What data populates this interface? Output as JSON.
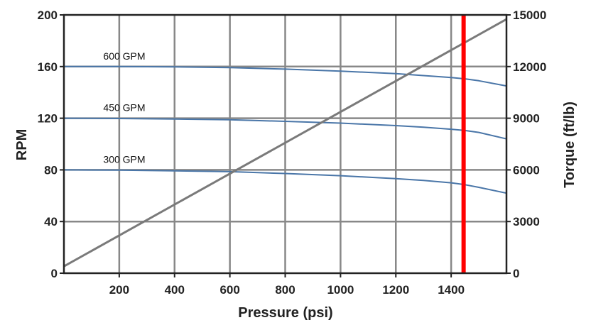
{
  "chart_data": {
    "type": "line",
    "title": "",
    "xlabel": "Pressure (psi)",
    "ylabel": "RPM",
    "y2label": "Torque (ft/lb)",
    "xlim": [
      0,
      1600
    ],
    "ylim": [
      0,
      200
    ],
    "y2lim": [
      0,
      15000
    ],
    "xticks": [
      200,
      400,
      600,
      800,
      1000,
      1200,
      1400
    ],
    "yticks": [
      0,
      40,
      80,
      120,
      160,
      200
    ],
    "y2ticks": [
      0,
      3000,
      6000,
      9000,
      12000,
      15000
    ],
    "grid": true,
    "series": [
      {
        "name": "600 GPM",
        "axis": "left",
        "color": "#4a76a8",
        "x": [
          0,
          200,
          400,
          600,
          800,
          1000,
          1200,
          1300,
          1400,
          1450,
          1500,
          1600
        ],
        "y": [
          160,
          160,
          159.8,
          159.2,
          158,
          156.5,
          154.5,
          153,
          151.5,
          150.5,
          149,
          145
        ]
      },
      {
        "name": "450 GPM",
        "axis": "left",
        "color": "#4a76a8",
        "x": [
          0,
          200,
          400,
          600,
          800,
          1000,
          1200,
          1300,
          1400,
          1450,
          1500,
          1600
        ],
        "y": [
          120,
          119.8,
          119.4,
          118.8,
          117.6,
          116.2,
          114.3,
          113,
          111.5,
          110.5,
          109,
          104
        ]
      },
      {
        "name": "300 GPM",
        "axis": "left",
        "color": "#4a76a8",
        "x": [
          0,
          200,
          400,
          600,
          800,
          1000,
          1200,
          1300,
          1400,
          1450,
          1500,
          1600
        ],
        "y": [
          80,
          79.8,
          79.3,
          78.6,
          77.2,
          75.5,
          73.2,
          71.8,
          70,
          68.5,
          66.5,
          62
        ]
      },
      {
        "name": "",
        "axis": "right",
        "color": "#7a7a7a",
        "x": [
          0,
          1600
        ],
        "y": [
          400,
          14750
        ]
      }
    ],
    "vline": {
      "x": 1445,
      "color": "#ff0000"
    }
  }
}
